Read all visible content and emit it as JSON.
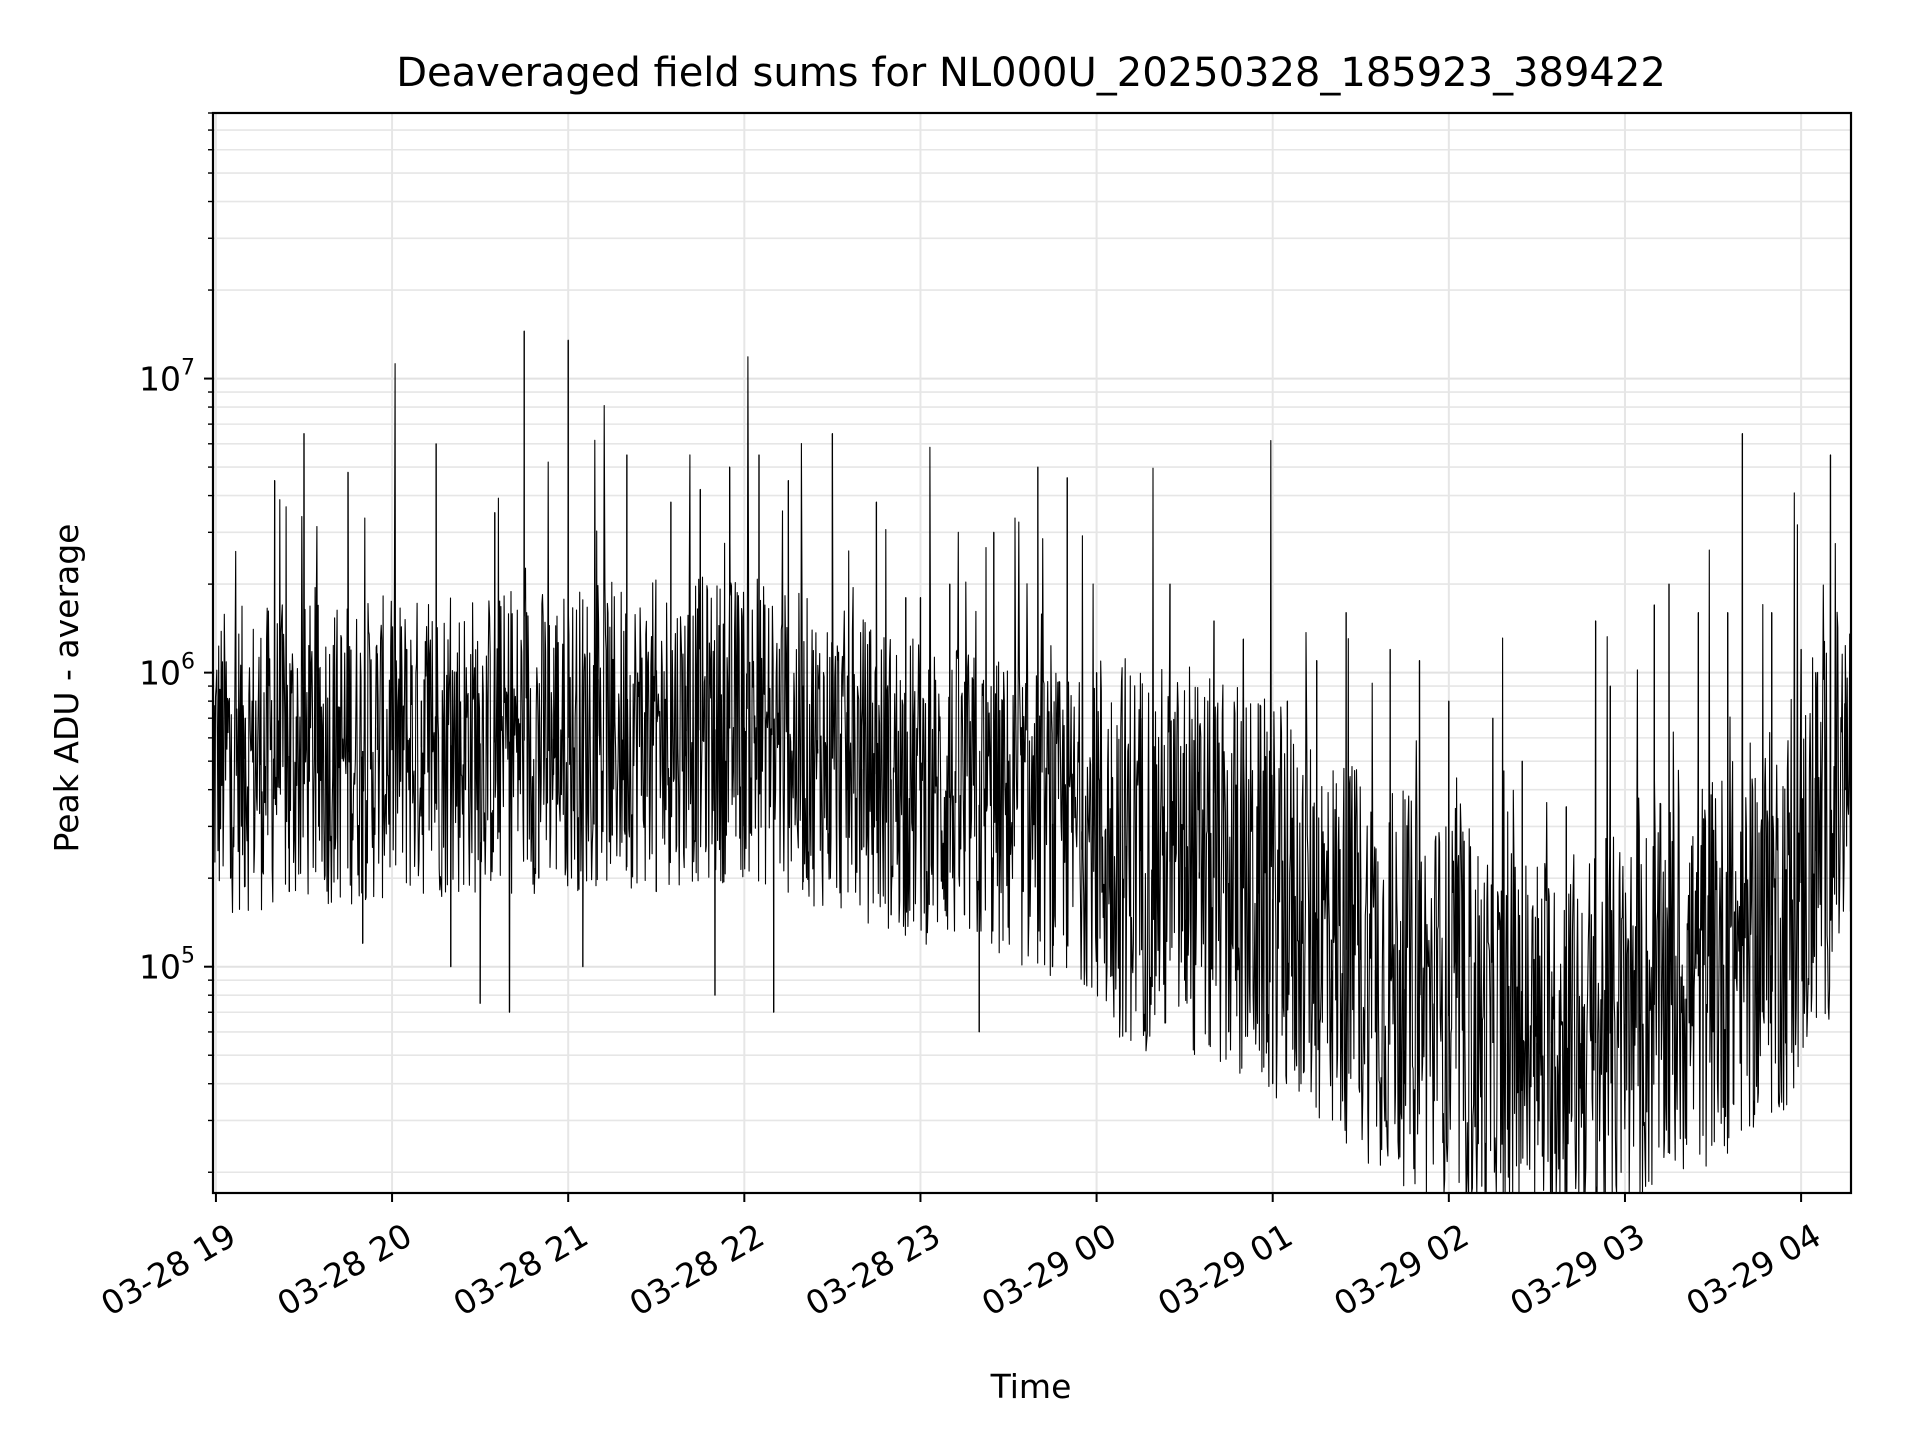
{
  "chart_data": {
    "type": "line",
    "title": "Deaveraged field sums for NL000U_20250328_185923_389422",
    "xlabel": "Time",
    "ylabel": "Peak ADU - average",
    "yscale": "log",
    "xlim": [
      "03-28 18:59",
      "03-29 04:17"
    ],
    "ylim": [
      17000,
      80000000
    ],
    "grid": true,
    "line_color": "#000000",
    "x_ticks": [
      {
        "value": "03-28 19:00",
        "label": "03-28 19"
      },
      {
        "value": "03-28 20:00",
        "label": "03-28 20"
      },
      {
        "value": "03-28 21:00",
        "label": "03-28 21"
      },
      {
        "value": "03-28 22:00",
        "label": "03-28 22"
      },
      {
        "value": "03-28 23:00",
        "label": "03-28 23"
      },
      {
        "value": "03-29 00:00",
        "label": "03-29 00"
      },
      {
        "value": "03-29 01:00",
        "label": "03-29 01"
      },
      {
        "value": "03-29 02:00",
        "label": "03-29 02"
      },
      {
        "value": "03-29 03:00",
        "label": "03-29 03"
      },
      {
        "value": "03-29 04:00",
        "label": "03-29 04"
      }
    ],
    "y_ticks": [
      {
        "value": 100000,
        "base": "10",
        "exp": "5"
      },
      {
        "value": 1000000,
        "base": "10",
        "exp": "6"
      },
      {
        "value": 10000000,
        "base": "10",
        "exp": "7"
      }
    ],
    "series": [
      {
        "x": [
          "03-28 18:59",
          "03-28 19:05",
          "03-28 19:10",
          "03-28 19:15",
          "03-28 19:20",
          "03-28 19:25",
          "03-28 19:30",
          "03-28 19:35",
          "03-28 19:40",
          "03-28 19:45",
          "03-28 19:50",
          "03-28 19:55",
          "03-28 20:00",
          "03-28 20:05",
          "03-28 20:10",
          "03-28 20:15",
          "03-28 20:20",
          "03-28 20:25",
          "03-28 20:30",
          "03-28 20:35",
          "03-28 20:40",
          "03-28 20:45",
          "03-28 20:50",
          "03-28 20:55",
          "03-28 21:00",
          "03-28 21:05",
          "03-28 21:10",
          "03-28 21:15",
          "03-28 21:20",
          "03-28 21:25",
          "03-28 21:30",
          "03-28 21:35",
          "03-28 21:40",
          "03-28 21:45",
          "03-28 21:50",
          "03-28 21:55",
          "03-28 22:00",
          "03-28 22:05",
          "03-28 22:10",
          "03-28 22:15",
          "03-28 22:20",
          "03-28 22:25",
          "03-28 22:30",
          "03-28 22:35",
          "03-28 22:40",
          "03-28 22:45",
          "03-28 22:50",
          "03-28 22:55",
          "03-28 23:00",
          "03-28 23:05",
          "03-28 23:10",
          "03-28 23:15",
          "03-28 23:20",
          "03-28 23:25",
          "03-28 23:30",
          "03-28 23:35",
          "03-28 23:40",
          "03-28 23:45",
          "03-28 23:50",
          "03-28 23:55",
          "03-29 00:00",
          "03-29 00:05",
          "03-29 00:10",
          "03-29 00:15",
          "03-29 00:20",
          "03-29 00:25",
          "03-29 00:30",
          "03-29 00:35",
          "03-29 00:40",
          "03-29 00:45",
          "03-29 00:50",
          "03-29 00:55",
          "03-29 01:00",
          "03-29 01:05",
          "03-29 01:10",
          "03-29 01:15",
          "03-29 01:20",
          "03-29 01:25",
          "03-29 01:30",
          "03-29 01:35",
          "03-29 01:40",
          "03-29 01:45",
          "03-29 01:50",
          "03-29 01:55",
          "03-29 02:00",
          "03-29 02:05",
          "03-29 02:10",
          "03-29 02:15",
          "03-29 02:20",
          "03-29 02:25",
          "03-29 02:30",
          "03-29 02:35",
          "03-29 02:40",
          "03-29 02:45",
          "03-29 02:50",
          "03-29 02:55",
          "03-29 03:00",
          "03-29 03:05",
          "03-29 03:10",
          "03-29 03:15",
          "03-29 03:20",
          "03-29 03:25",
          "03-29 03:30",
          "03-29 03:35",
          "03-29 03:40",
          "03-29 03:45",
          "03-29 03:50",
          "03-29 03:55",
          "03-29 04:00",
          "03-29 04:05",
          "03-29 04:10",
          "03-29 04:15"
        ],
        "y": [
          1500000,
          200000,
          700000,
          600000,
          4500000,
          180000,
          6500000,
          300000,
          700000,
          4800000,
          120000,
          650000,
          550000,
          1200000,
          800000,
          6000000,
          100000,
          400000,
          75000,
          3500000,
          70000,
          14500000,
          200000,
          450000,
          13500000,
          100000,
          950000,
          280000,
          5500000,
          750000,
          180000,
          3800000,
          900000,
          4200000,
          80000,
          5000000,
          300000,
          5500000,
          70000,
          4500000,
          900000,
          550000,
          6500000,
          400000,
          250000,
          3800000,
          150000,
          1800000,
          1800000,
          400000,
          2000000,
          150000,
          60000,
          3000000,
          500000,
          180000,
          5000000,
          100000,
          4600000,
          250000,
          1000000,
          250000,
          60000,
          700000,
          400000,
          2000000,
          90000,
          200000,
          1500000,
          60000,
          1300000,
          400000,
          40000,
          800000,
          120000,
          1100000,
          60000,
          1600000,
          200000,
          60000,
          1200000,
          40000,
          1100000,
          35000,
          800000,
          30000,
          25000,
          700000,
          28000,
          500000,
          35000,
          60000,
          350000,
          40000,
          1500000,
          900000,
          35000,
          60000,
          1700000,
          2000000,
          50000,
          1600000,
          60000,
          1600000,
          6500000,
          80000,
          1600000,
          50000,
          1200000,
          1000000,
          5500000,
          400000
        ]
      }
    ]
  }
}
